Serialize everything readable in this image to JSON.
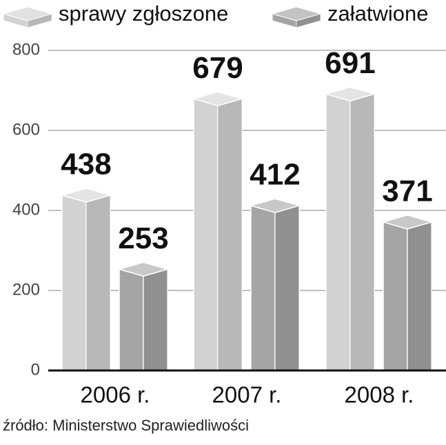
{
  "chart_data": {
    "type": "bar3d",
    "categories": [
      "2006 r.",
      "2007 r.",
      "2008 r."
    ],
    "series": [
      {
        "name": "sprawy zgłoszone",
        "color": "#d2d2d2",
        "values": [
          438,
          679,
          691
        ]
      },
      {
        "name": "załatwione",
        "color": "#a4a4a4",
        "values": [
          253,
          412,
          371
        ]
      }
    ],
    "ylim": [
      0,
      800
    ],
    "yticks": [
      0,
      200,
      400,
      600,
      800
    ],
    "grid": true,
    "legend": "top",
    "source": "źródło: Ministerstwo Sprawiedliwości"
  }
}
